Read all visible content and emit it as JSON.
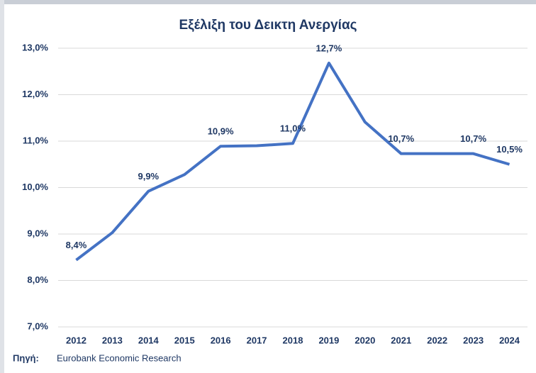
{
  "chart_data": {
    "type": "line",
    "title": "Εξέλιξη του Δεικτη Ανεργίας",
    "categories": [
      "2012",
      "2013",
      "2014",
      "2015",
      "2016",
      "2017",
      "2018",
      "2019",
      "2020",
      "2021",
      "2022",
      "2023",
      "2024"
    ],
    "series": [
      {
        "name": "Δείκτης Ανεργίας",
        "color": "#4472c4",
        "values": [
          8.44,
          9.03,
          9.92,
          10.28,
          10.89,
          10.9,
          10.95,
          12.68,
          11.41,
          10.73,
          10.73,
          10.73,
          10.5
        ],
        "value_labels": [
          "8,4%",
          null,
          "9,9%",
          null,
          "10,9%",
          null,
          "11,0%",
          "12,7%",
          null,
          "10,7%",
          null,
          "10,7%",
          "10,5%"
        ]
      }
    ],
    "ylim": [
      7,
      13
    ],
    "yticks": [
      {
        "value": 7,
        "label": "7,0%"
      },
      {
        "value": 8,
        "label": "8,0%"
      },
      {
        "value": 9,
        "label": "9,0%"
      },
      {
        "value": 10,
        "label": "10,0%"
      },
      {
        "value": 11,
        "label": "11,0%"
      },
      {
        "value": 12,
        "label": "12,0%"
      },
      {
        "value": 13,
        "label": "13,0%"
      }
    ],
    "grid": true,
    "source_label": "Πηγή:",
    "source": "Eurobank Economic Research"
  }
}
